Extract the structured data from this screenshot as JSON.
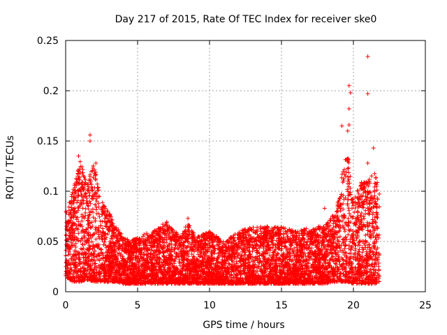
{
  "chart_data": {
    "type": "scatter",
    "title": "Day 217 of 2015, Rate Of TEC Index for receiver ske0",
    "xlabel": "GPS time / hours",
    "ylabel": "ROTI / TECUs",
    "xlim": [
      0,
      25
    ],
    "ylim": [
      0,
      0.25
    ],
    "xticks": [
      0,
      5,
      10,
      15,
      20,
      25
    ],
    "xtick_labels": [
      "0",
      "5",
      "10",
      "15",
      "20",
      "25"
    ],
    "yticks": [
      0,
      0.05,
      0.1,
      0.15,
      0.2,
      0.25
    ],
    "ytick_labels": [
      "0",
      "0.05",
      "0.1",
      "0.15",
      "0.2",
      "0.25"
    ],
    "grid": true,
    "marker": "+",
    "color": "#ff0000",
    "series": [
      {
        "name": "ROTI",
        "x_range": [
          0,
          21.8
        ],
        "envelope": {
          "x": [
            0,
            0.5,
            1.0,
            1.5,
            2.0,
            2.5,
            3.0,
            3.5,
            4.0,
            4.5,
            5.0,
            6.0,
            7.0,
            8.0,
            8.5,
            9.0,
            10.0,
            11.0,
            12.0,
            13.0,
            14.0,
            15.0,
            16.0,
            17.0,
            18.0,
            18.8,
            19.2,
            19.6,
            20.0,
            20.5,
            21.0,
            21.5,
            21.8
          ],
          "upper": [
            0.08,
            0.1,
            0.13,
            0.11,
            0.13,
            0.09,
            0.08,
            0.065,
            0.055,
            0.05,
            0.055,
            0.06,
            0.07,
            0.055,
            0.07,
            0.055,
            0.06,
            0.05,
            0.06,
            0.065,
            0.065,
            0.065,
            0.06,
            0.065,
            0.065,
            0.08,
            0.12,
            0.14,
            0.09,
            0.11,
            0.11,
            0.12,
            0.1
          ],
          "lower": [
            0.015,
            0.01,
            0.01,
            0.012,
            0.01,
            0.01,
            0.01,
            0.01,
            0.008,
            0.008,
            0.008,
            0.008,
            0.008,
            0.008,
            0.008,
            0.008,
            0.008,
            0.008,
            0.008,
            0.008,
            0.008,
            0.008,
            0.008,
            0.008,
            0.008,
            0.01,
            0.01,
            0.01,
            0.008,
            0.008,
            0.008,
            0.008,
            0.01
          ]
        },
        "outliers": [
          {
            "x": 1.7,
            "y": 0.156
          },
          {
            "x": 1.7,
            "y": 0.15
          },
          {
            "x": 0.9,
            "y": 0.135
          },
          {
            "x": 2.1,
            "y": 0.128
          },
          {
            "x": 19.7,
            "y": 0.205
          },
          {
            "x": 19.8,
            "y": 0.198
          },
          {
            "x": 19.7,
            "y": 0.182
          },
          {
            "x": 19.6,
            "y": 0.16
          },
          {
            "x": 19.2,
            "y": 0.165
          },
          {
            "x": 19.7,
            "y": 0.166
          },
          {
            "x": 21.0,
            "y": 0.234
          },
          {
            "x": 21.0,
            "y": 0.197
          },
          {
            "x": 21.4,
            "y": 0.143
          },
          {
            "x": 21.0,
            "y": 0.128
          },
          {
            "x": 8.5,
            "y": 0.073
          },
          {
            "x": 18.0,
            "y": 0.083
          }
        ]
      }
    ]
  }
}
